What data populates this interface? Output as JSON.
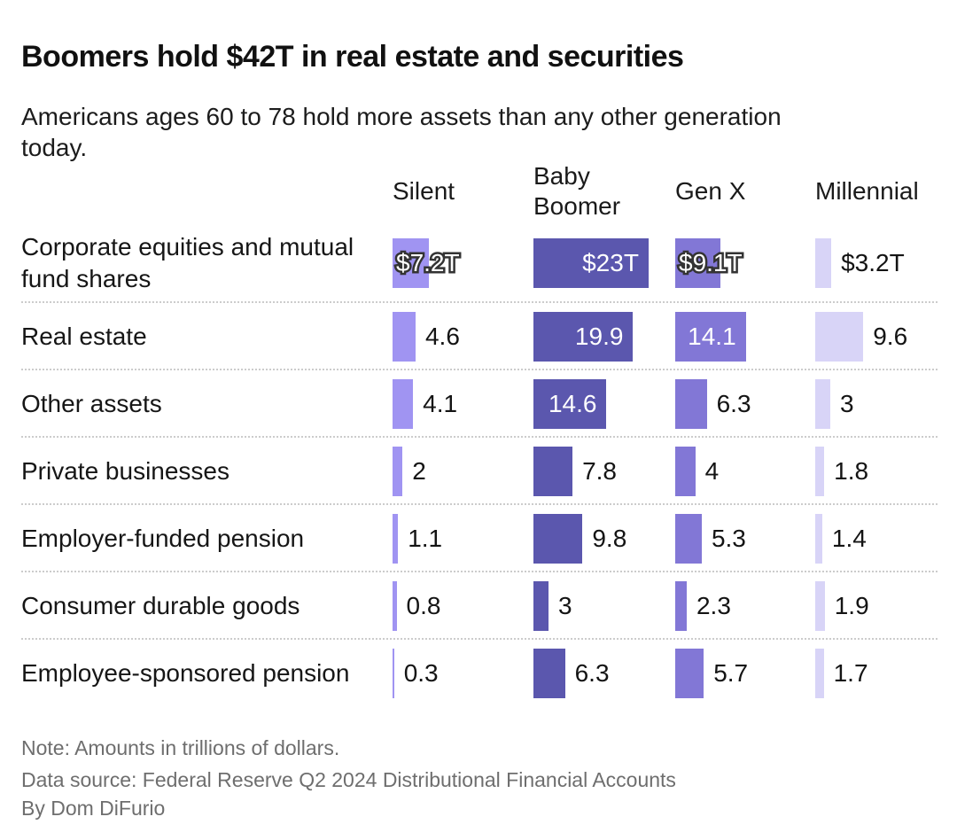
{
  "header": {
    "title": "Boomers hold $42T in real estate and securities",
    "subtitle": "Americans ages 60 to 78 hold more assets than any other generation today."
  },
  "footer": {
    "note": "Note: Amounts in trillions of dollars.",
    "source": "Data source: Federal Reserve Q2 2024 Distributional Financial Accounts",
    "byline": "By Dom DiFurio"
  },
  "chart_data": {
    "type": "bar",
    "orientation": "horizontal",
    "title": "Boomers hold $42T in real estate and securities",
    "subtitle": "Americans ages 60 to 78 hold more assets than any other generation today.",
    "note": "Note: Amounts in trillions of dollars.",
    "unit": "trillions of dollars",
    "xlim": [
      0,
      23
    ],
    "grid": false,
    "legend_position": "column-headers-top",
    "categories": [
      "Corporate equities and mutual fund shares",
      "Real estate",
      "Other assets",
      "Private businesses",
      "Employer-funded pension",
      "Consumer durable goods",
      "Employee-sponsored pension"
    ],
    "series": [
      {
        "name": "Silent",
        "color": "#a094f2",
        "values": [
          7.2,
          4.6,
          4.1,
          2,
          1.1,
          0.8,
          0.3
        ],
        "labels": [
          "$7.2T",
          "4.6",
          "4.1",
          "2",
          "1.1",
          "0.8",
          "0.3"
        ],
        "label_styles": [
          "halo",
          "outside",
          "outside",
          "outside",
          "outside",
          "outside",
          "outside"
        ]
      },
      {
        "name": "Baby Boomer",
        "color": "#5b57ae",
        "values": [
          23,
          19.9,
          14.6,
          7.8,
          9.8,
          3,
          6.3
        ],
        "labels": [
          "$23T",
          "19.9",
          "14.6",
          "7.8",
          "9.8",
          "3",
          "6.3"
        ],
        "label_styles": [
          "inside",
          "inside",
          "inside",
          "outside",
          "outside",
          "outside",
          "outside"
        ]
      },
      {
        "name": "Gen X",
        "color": "#8277d6",
        "values": [
          9.1,
          14.1,
          6.3,
          4,
          5.3,
          2.3,
          5.7
        ],
        "labels": [
          "$9.1T",
          "14.1",
          "6.3",
          "4",
          "5.3",
          "2.3",
          "5.7"
        ],
        "label_styles": [
          "halo",
          "inside",
          "outside",
          "outside",
          "outside",
          "outside",
          "outside"
        ]
      },
      {
        "name": "Millennial",
        "color": "#d8d4f7",
        "values": [
          3.2,
          9.6,
          3,
          1.8,
          1.4,
          1.9,
          1.7
        ],
        "labels": [
          "$3.2T",
          "9.6",
          "3",
          "1.8",
          "1.4",
          "1.9",
          "1.7"
        ],
        "label_styles": [
          "outside",
          "outside",
          "outside",
          "outside",
          "outside",
          "outside",
          "outside"
        ]
      }
    ]
  }
}
